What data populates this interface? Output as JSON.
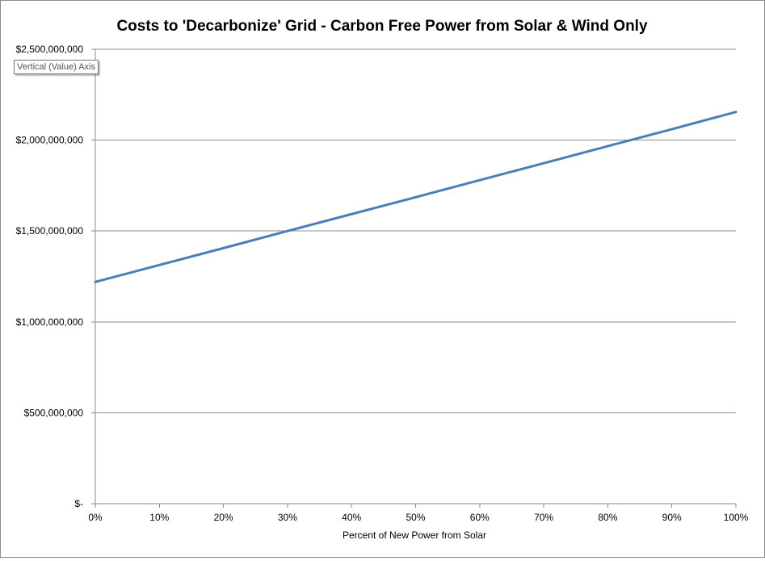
{
  "chart_data": {
    "type": "line",
    "title": "Costs to 'Decarbonize' Grid - Carbon Free Power from Solar &  Wind Only",
    "xlabel": "Percent of New Power from Solar",
    "ylabel": "",
    "categories": [
      "0%",
      "10%",
      "20%",
      "30%",
      "40%",
      "50%",
      "60%",
      "70%",
      "80%",
      "90%",
      "100%"
    ],
    "x": [
      0,
      10,
      20,
      30,
      40,
      50,
      60,
      70,
      80,
      90,
      100
    ],
    "series": [
      {
        "values": [
          1220000000,
          1313000000,
          1406000000,
          1500000000,
          1593000000,
          1686000000,
          1780000000,
          1873000000,
          1967000000,
          2060000000,
          2155000000
        ],
        "color": "#4a7ebb"
      }
    ],
    "ylim": [
      0,
      2500000000
    ],
    "y_ticks": [
      0,
      500000000,
      1000000000,
      1500000000,
      2000000000,
      2500000000
    ],
    "y_tick_labels": [
      "$-",
      "$500,000,000",
      "$1,000,000,000",
      "$1,500,000,000",
      "$2,000,000,000",
      "$2,500,000,000"
    ],
    "grid": true,
    "legend": "none"
  },
  "tooltip": {
    "text": "Vertical (Value) Axis"
  }
}
